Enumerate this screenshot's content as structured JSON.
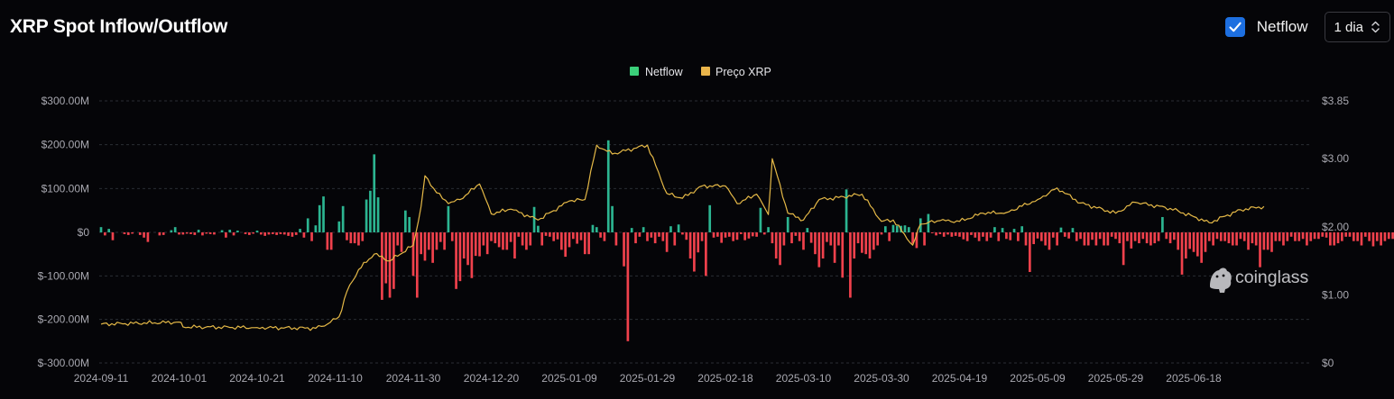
{
  "header": {
    "title": "XRP Spot Inflow/Outflow",
    "toggle_label": "Netflow",
    "toggle_checked": true,
    "interval_value": "1 dia",
    "checkbox_icon": "check-icon",
    "select_icon": "chevron-updown-icon"
  },
  "watermark": {
    "text": "coinglass",
    "icon": "coinglass-logo-icon"
  },
  "colors": {
    "positive": "#2cb591",
    "negative": "#f0414c",
    "price": "#e5b947",
    "legend_netflow": "#3bd07a",
    "legend_price": "#eab54b",
    "grid": "#2a2d33",
    "axis_text": "#a8a8b0",
    "background": "#050508"
  },
  "chart_data": {
    "type": "bar",
    "grid": true,
    "legend_position": "top-center",
    "legend": [
      "Netflow",
      "Preço XRP"
    ],
    "x_tick_labels": [
      "2024-09-11",
      "2024-10-01",
      "2024-10-21",
      "2024-11-10",
      "2024-11-30",
      "2024-12-20",
      "2025-01-09",
      "2025-01-29",
      "2025-02-18",
      "2025-03-10",
      "2025-03-30",
      "2025-04-19",
      "2025-05-09",
      "2025-05-29",
      "2025-06-18"
    ],
    "y_left": {
      "ylim": [
        -300,
        300
      ],
      "unit": "M USD",
      "tick_labels": [
        "$300.00M",
        "$200.00M",
        "$100.00M",
        "$0",
        "$-100.00M",
        "$-200.00M",
        "$-300.00M"
      ]
    },
    "y_right": {
      "ylim": [
        0,
        3.85
      ],
      "tick_values": [
        3.85,
        3.0,
        2.0,
        1.0,
        0
      ],
      "tick_labels": [
        "$3.85",
        "$3.00",
        "$2.00",
        "$1.00",
        "$0"
      ]
    },
    "series": [
      {
        "name": "Netflow",
        "axis": "left",
        "x_start": "2024-09-11",
        "values": [
          12,
          -7,
          8,
          -18,
          0,
          0,
          -4,
          -6,
          -3,
          0,
          -6,
          -12,
          -22,
          0,
          0,
          -7,
          -6,
          0,
          5,
          12,
          -5,
          -5,
          -3,
          -4,
          -6,
          6,
          -7,
          -3,
          -4,
          -5,
          0,
          5,
          -12,
          6,
          -7,
          4,
          0,
          -4,
          -6,
          -3,
          4,
          -5,
          -8,
          -5,
          -4,
          -6,
          -4,
          -5,
          -8,
          -10,
          -6,
          8,
          -12,
          32,
          -20,
          16,
          62,
          82,
          -40,
          -40,
          0,
          25,
          60,
          -18,
          -25,
          -25,
          -30,
          -20,
          75,
          95,
          178,
          80,
          -155,
          -117,
          -150,
          -130,
          -30,
          -45,
          50,
          35,
          -100,
          -150,
          -50,
          -65,
          -40,
          -70,
          -40,
          -22,
          -40,
          60,
          -20,
          -130,
          -112,
          -60,
          -75,
          -105,
          -54,
          -55,
          -30,
          -50,
          -20,
          -25,
          -34,
          -40,
          -40,
          -22,
          -60,
          -10,
          -30,
          -40,
          -30,
          58,
          15,
          -30,
          -8,
          -10,
          -20,
          -16,
          -40,
          -56,
          -34,
          -15,
          -26,
          -18,
          -50,
          -50,
          17,
          12,
          -12,
          -20,
          210,
          60,
          -30,
          0,
          -78,
          -250,
          10,
          -25,
          -10,
          12,
          -20,
          -12,
          -25,
          -10,
          -20,
          -45,
          14,
          -30,
          18,
          -5,
          -17,
          -60,
          -90,
          -46,
          -20,
          -100,
          62,
          -12,
          -10,
          -24,
          -12,
          -10,
          -20,
          -17,
          -4,
          -18,
          -14,
          -9,
          -10,
          56,
          -5,
          12,
          -25,
          -60,
          -75,
          -30,
          35,
          -25,
          -8,
          -20,
          -40,
          10,
          -24,
          -50,
          -80,
          -60,
          -22,
          -30,
          -70,
          -30,
          -104,
          98,
          -150,
          -60,
          -25,
          -47,
          -50,
          -60,
          -40,
          -30,
          -5,
          14,
          -20,
          17,
          15,
          15,
          16,
          12,
          -26,
          -36,
          32,
          -30,
          42,
          -2,
          -7,
          -4,
          -10,
          -5,
          -10,
          -8,
          -10,
          -16,
          -20,
          -6,
          -12,
          -20,
          -10,
          -20,
          -12,
          12,
          -20,
          10,
          -15,
          -18,
          8,
          -20,
          14,
          -30,
          -91,
          -27,
          -14,
          -20,
          -30,
          -40,
          -12,
          -30,
          11,
          -10,
          -14,
          10,
          -20,
          -15,
          -30,
          -30,
          -17,
          -30,
          -15,
          -30,
          -30,
          -10,
          -15,
          -25,
          -75,
          -20,
          -37,
          -20,
          -25,
          -15,
          -25,
          -30,
          -25,
          -20,
          35,
          -15,
          -25,
          -17,
          -40,
          -97,
          -60,
          -38,
          -45,
          -55,
          -70,
          -45,
          -20,
          -30,
          -15,
          -20,
          -20,
          -25,
          -30,
          -30,
          -15,
          -20,
          -40,
          -25,
          -30,
          -80,
          -40,
          -40,
          -45,
          -20,
          -20,
          -30,
          -20,
          -10,
          -20,
          -20,
          -15,
          -30,
          -20,
          -15,
          -15,
          -10,
          -12,
          -30,
          -30,
          -25,
          -20,
          -10,
          -10,
          -20,
          -20,
          -30,
          -10,
          -20,
          -32,
          -20,
          -30,
          -20,
          -15,
          -15,
          -5,
          -15,
          -20,
          -25,
          -10,
          -5,
          -15,
          -20,
          -10,
          -30,
          -15,
          -10,
          -5,
          -10,
          -15,
          -20,
          -10,
          -5,
          -10,
          -15,
          -20,
          -10,
          -40
        ]
      },
      {
        "name": "Preço XRP",
        "axis": "right",
        "x": [
          "2024-09-11",
          "2024-10-01",
          "2024-10-02",
          "2024-10-21",
          "2024-11-05",
          "2024-11-08",
          "2024-11-11",
          "2024-11-13",
          "2024-11-16",
          "2024-11-20",
          "2024-11-24",
          "2024-11-30",
          "2024-12-02",
          "2024-12-03",
          "2024-12-06",
          "2024-12-09",
          "2024-12-12",
          "2024-12-17",
          "2024-12-20",
          "2024-12-25",
          "2025-01-01",
          "2025-01-09",
          "2025-01-13",
          "2025-01-16",
          "2025-01-20",
          "2025-01-29",
          "2025-02-03",
          "2025-02-07",
          "2025-02-12",
          "2025-02-18",
          "2025-02-21",
          "2025-02-26",
          "2025-03-01",
          "2025-03-02",
          "2025-03-06",
          "2025-03-10",
          "2025-03-14",
          "2025-03-19",
          "2025-03-25",
          "2025-03-30",
          "2025-04-02",
          "2025-04-07",
          "2025-04-09",
          "2025-04-14",
          "2025-04-19",
          "2025-04-25",
          "2025-05-01",
          "2025-05-09",
          "2025-05-14",
          "2025-05-20",
          "2025-05-29",
          "2025-06-03",
          "2025-06-12",
          "2025-06-18",
          "2025-06-22",
          "2025-06-30",
          "2025-07-06"
        ],
        "y": [
          0.57,
          0.6,
          0.53,
          0.52,
          0.51,
          0.57,
          0.68,
          1.05,
          1.37,
          1.6,
          1.5,
          1.73,
          2.3,
          2.75,
          2.5,
          2.34,
          2.4,
          2.63,
          2.19,
          2.26,
          2.1,
          2.38,
          2.4,
          3.2,
          3.07,
          3.2,
          2.49,
          2.42,
          2.6,
          2.6,
          2.34,
          2.48,
          2.18,
          3.0,
          2.2,
          2.1,
          2.4,
          2.43,
          2.48,
          2.08,
          2.1,
          1.73,
          2.04,
          2.09,
          2.08,
          2.2,
          2.21,
          2.4,
          2.57,
          2.35,
          2.2,
          2.36,
          2.27,
          2.15,
          2.06,
          2.25,
          2.3
        ]
      }
    ]
  }
}
